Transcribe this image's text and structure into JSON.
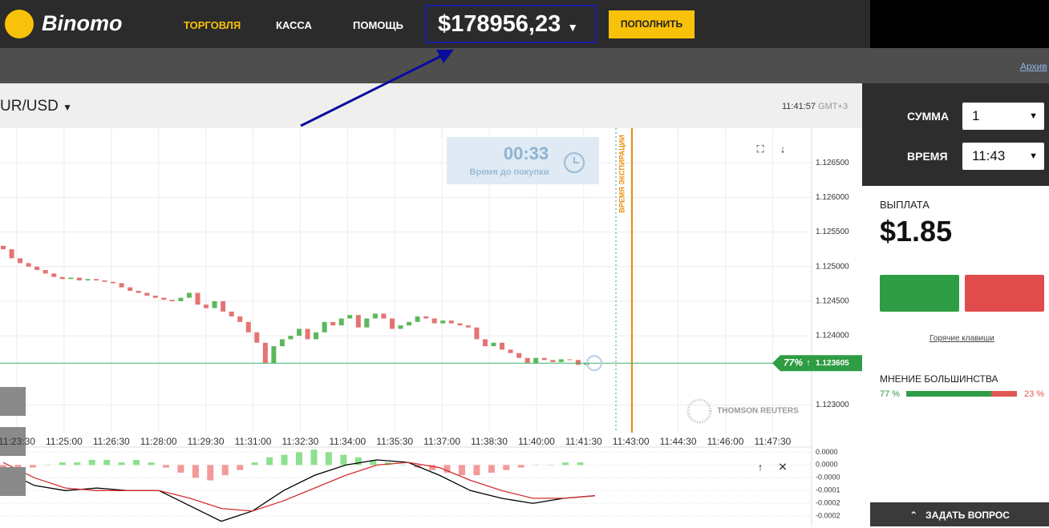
{
  "header": {
    "logo": "Binomo",
    "nav": [
      "ТОРГОВЛЯ",
      "КАССА",
      "ПОМОЩЬ"
    ],
    "balance": "$178956,23",
    "deposit": "ПОПОЛНИТЬ"
  },
  "toolbar": {
    "archive": "Архив"
  },
  "asset": {
    "symbol": "UR/USD",
    "time": "11:41:57",
    "timezone": "GMT+3"
  },
  "timer": {
    "value": "00:33",
    "label": "Время до покупки"
  },
  "expiration_label": "ВРЕМЯ ЭКСПИРАЦИИ",
  "watermark": "THOMSON REUTERS",
  "chart_data": [
    {
      "type": "candlestick",
      "open": [
        1.1253,
        1.12525,
        1.12512,
        1.12505,
        1.125,
        1.12495,
        1.1249,
        1.12485,
        1.12482,
        1.12484,
        1.1248,
        1.12482,
        1.1248,
        1.12478,
        1.12476,
        1.1247,
        1.12465,
        1.12462,
        1.12458,
        1.12455,
        1.12452,
        1.1245,
        1.12455,
        1.12462,
        1.12445,
        1.1244,
        1.1245,
        1.12435,
        1.12428,
        1.1242,
        1.12405,
        1.1239,
        1.1236,
        1.12385,
        1.12395,
        1.124,
        1.1241,
        1.12395,
        1.12405,
        1.1242,
        1.12415,
        1.12425,
        1.1243,
        1.12412,
        1.12425,
        1.12432,
        1.12425,
        1.1241,
        1.12415,
        1.1242,
        1.12428,
        1.12425,
        1.12418,
        1.12422,
        1.12418,
        1.12415,
        1.12412,
        1.12395,
        1.12385,
        1.1239,
        1.1238,
        1.12375,
        1.12368,
        1.1236,
        1.12368,
        1.12365,
        1.12362,
        1.12366,
        1.12365,
        1.12358
      ],
      "close": [
        1.12525,
        1.12512,
        1.12505,
        1.125,
        1.12495,
        1.1249,
        1.12485,
        1.12482,
        1.12484,
        1.1248,
        1.12482,
        1.1248,
        1.12478,
        1.12476,
        1.1247,
        1.12465,
        1.12462,
        1.12458,
        1.12455,
        1.12452,
        1.1245,
        1.12455,
        1.12462,
        1.12445,
        1.1244,
        1.1245,
        1.12435,
        1.12428,
        1.1242,
        1.12405,
        1.1239,
        1.1236,
        1.12385,
        1.12395,
        1.124,
        1.1241,
        1.12395,
        1.12405,
        1.1242,
        1.12415,
        1.12425,
        1.1243,
        1.12412,
        1.12425,
        1.12432,
        1.12425,
        1.1241,
        1.12415,
        1.1242,
        1.12428,
        1.12425,
        1.12418,
        1.12422,
        1.12418,
        1.12415,
        1.12412,
        1.12395,
        1.12385,
        1.1239,
        1.1238,
        1.12375,
        1.12368,
        1.1236,
        1.12368,
        1.12365,
        1.12362,
        1.12366,
        1.12365,
        1.12358,
        1.12361
      ],
      "up_color": "#5cb85c",
      "down_color": "#e57373",
      "current_price": 1.123605,
      "current_percent": "77%",
      "ylim": [
        1.1226,
        1.127
      ],
      "yticks": [
        {
          "value": 1.1265,
          "label": "1.126500"
        },
        {
          "value": 1.126,
          "label": "1.126000"
        },
        {
          "value": 1.1255,
          "label": "1.125500"
        },
        {
          "value": 1.125,
          "label": "1.125000"
        },
        {
          "value": 1.1245,
          "label": "1.124500"
        },
        {
          "value": 1.124,
          "label": "1.124000"
        },
        {
          "value": 1.123,
          "label": "1.123000"
        }
      ],
      "x_labels": [
        "11:23:30",
        "11:25:00",
        "11:26:30",
        "11:28:00",
        "11:29:30",
        "11:31:00",
        "11:32:30",
        "11:34:00",
        "11:35:30",
        "11:37:00",
        "11:38:30",
        "11:40:00",
        "11:41:30",
        "11:43:00",
        "11:44:30",
        "11:46:00",
        "11:47:30"
      ],
      "grid": true
    },
    {
      "type": "macd",
      "histogram": [
        -2e-05,
        -1e-05,
        -1e-05,
        0,
        1e-05,
        1e-05,
        2e-05,
        2e-05,
        1e-05,
        2e-05,
        1e-05,
        -1e-05,
        -3e-05,
        -5e-05,
        -6e-05,
        -4e-05,
        -2e-05,
        1e-05,
        3e-05,
        4e-05,
        5e-05,
        6e-05,
        5e-05,
        4e-05,
        3e-05,
        2e-05,
        1e-05,
        0,
        -1e-05,
        -2e-05,
        -3e-05,
        -4e-05,
        -4e-05,
        -3e-05,
        -2e-05,
        -1e-05,
        0,
        0,
        1e-05,
        1e-05
      ],
      "series": [
        {
          "color": "#000000",
          "values": [
            -2e-05,
            -8e-05,
            -0.0001,
            -9e-05,
            -0.0001,
            -0.0001,
            -0.00016,
            -0.00022,
            -0.00018,
            -0.0001,
            -4e-05,
            0,
            2e-05,
            1e-05,
            -4e-05,
            -0.0001,
            -0.00013,
            -0.00015,
            -0.00013,
            -0.00012
          ]
        },
        {
          "color": "#d32f2f",
          "values": [
            1e-05,
            -5e-05,
            -9e-05,
            -0.0001,
            -0.0001,
            -0.0001,
            -0.00013,
            -0.00017,
            -0.00018,
            -0.00014,
            -9e-05,
            -4e-05,
            0,
            1e-05,
            -1e-05,
            -6e-05,
            -0.0001,
            -0.00013,
            -0.00013,
            -0.00012
          ]
        }
      ],
      "pos_color": "#8ee08e",
      "neg_color": "#f29a9a",
      "ylim": [
        -0.00024,
        7e-05
      ],
      "yticks": [
        {
          "value": 5e-05,
          "label": "0.0000"
        },
        {
          "value": 0,
          "label": "0.0000"
        },
        {
          "value": -5e-05,
          "label": "-0.0000"
        },
        {
          "value": -0.0001,
          "label": "-0.0001"
        },
        {
          "value": -0.00015,
          "label": "-0.0002"
        },
        {
          "value": -0.0002,
          "label": "-0.0002"
        }
      ]
    }
  ],
  "sidebar": {
    "amount_label": "СУММА",
    "amount": "1",
    "time_label": "ВРЕМЯ",
    "time": "11:43",
    "payout_label": "ВЫПЛАТА",
    "payout": "$1.85",
    "hotkeys": "Горячие клавиши",
    "majority": {
      "title": "МНЕНИЕ БОЛЬШИНСТВА",
      "values": [
        77,
        23
      ],
      "value_labels": [
        "77 %",
        "23 %"
      ],
      "colors": [
        "#2e9c44",
        "#e05555"
      ]
    },
    "ask": "ЗАДАТЬ ВОПРОС"
  }
}
